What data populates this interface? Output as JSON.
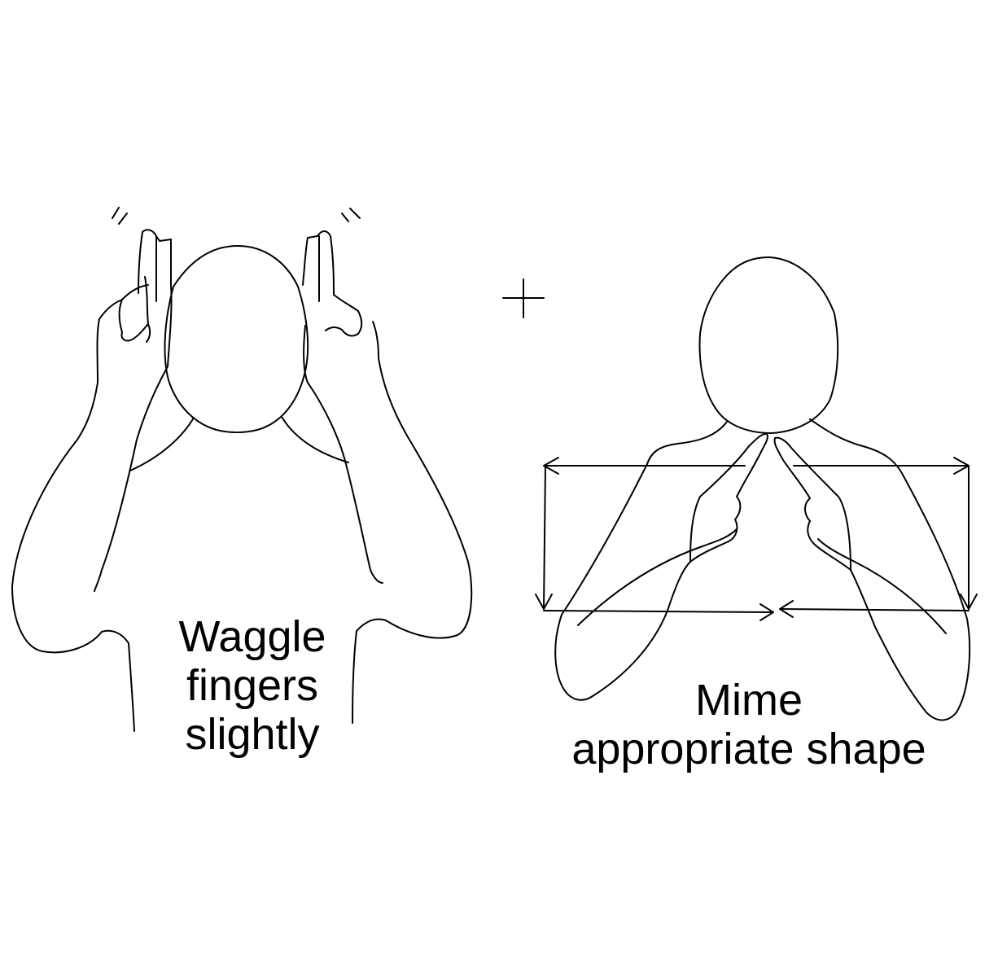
{
  "sign_1": {
    "caption_lines": [
      "Waggle",
      "fingers",
      "slightly"
    ]
  },
  "combine_symbol": "+",
  "sign_2": {
    "caption_lines": [
      "Mime",
      "appropriate shape"
    ]
  },
  "colors": {
    "ink": "#000000",
    "background": "#ffffff"
  }
}
